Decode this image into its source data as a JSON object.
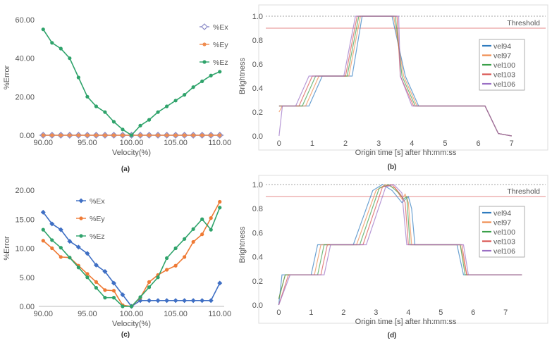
{
  "chart_data": [
    {
      "panel": "(a)",
      "type": "line",
      "xlabel": "Velocity(%)",
      "ylabel": "%Error",
      "xlim": [
        89.5,
        110.5
      ],
      "ylim": [
        0,
        60
      ],
      "xticks": [
        "90.00",
        "95.00",
        "100.00",
        "105.00",
        "110.00"
      ],
      "yticks": [
        "0.00",
        "20.00",
        "40.00",
        "60.00"
      ],
      "legend_position": "right",
      "x": [
        90,
        91,
        92,
        93,
        94,
        95,
        96,
        97,
        98,
        99,
        100,
        101,
        102,
        103,
        104,
        105,
        106,
        107,
        108,
        109,
        110
      ],
      "series": [
        {
          "name": "%Ex",
          "color": "#8b8bc8",
          "marker": "diamond-open",
          "values": [
            0,
            0,
            0,
            0,
            0,
            0,
            0,
            0,
            0,
            0,
            0,
            0,
            0,
            0,
            0,
            0,
            0,
            0,
            0,
            0,
            0
          ]
        },
        {
          "name": "%Ey",
          "color": "#ef8c4f",
          "marker": "dot",
          "values": [
            0,
            0,
            0,
            0,
            0,
            0,
            0,
            0,
            0,
            0,
            0,
            0,
            0,
            0,
            0,
            0,
            0,
            0,
            0,
            0,
            0
          ]
        },
        {
          "name": "%Ez",
          "color": "#2fa36b",
          "marker": "dot",
          "values": [
            55,
            48,
            45,
            40,
            30,
            20,
            15,
            12,
            7,
            3,
            0,
            5,
            8,
            12,
            15,
            18,
            21,
            25,
            28,
            31,
            33
          ]
        }
      ]
    },
    {
      "panel": "(b)",
      "type": "line",
      "xlabel": "Origin time [s] after hh:mm:ss",
      "ylabel": "Brightness",
      "xlim": [
        -0.4,
        7.6
      ],
      "ylim": [
        0,
        1.0
      ],
      "xticks": [
        "0",
        "1",
        "2",
        "3",
        "4",
        "5",
        "6",
        "7"
      ],
      "yticks": [
        "0.0",
        "0.2",
        "0.4",
        "0.6",
        "0.8",
        "1.0"
      ],
      "threshold": {
        "label": "Threshold",
        "value": 0.9
      },
      "legend_position": "right",
      "series": [
        {
          "name": "vel94",
          "color": "#2e7bbf",
          "x": [
            0,
            0.15,
            0.9,
            1.3,
            2.2,
            2.5,
            3.4,
            3.8,
            4.2,
            6.2,
            6.6,
            7
          ],
          "values": [
            0.25,
            0.25,
            0.25,
            0.5,
            0.5,
            1.0,
            1.0,
            0.5,
            0.25,
            0.25,
            0.02,
            0
          ]
        },
        {
          "name": "vel97",
          "color": "#ef8c4f",
          "x": [
            0,
            0.1,
            0.8,
            1.2,
            2.1,
            2.45,
            3.45,
            3.75,
            4.15,
            6.2,
            6.6,
            7
          ],
          "values": [
            0.2,
            0.25,
            0.25,
            0.5,
            0.5,
            1.0,
            1.0,
            0.5,
            0.25,
            0.25,
            0.02,
            0
          ]
        },
        {
          "name": "vel100",
          "color": "#3aa04a",
          "x": [
            0,
            0.1,
            0.7,
            1.1,
            2.05,
            2.4,
            3.5,
            3.7,
            4.1,
            6.2,
            6.6,
            7
          ],
          "values": [
            0.25,
            0.25,
            0.25,
            0.5,
            0.5,
            1.0,
            1.0,
            0.5,
            0.25,
            0.25,
            0.02,
            0
          ]
        },
        {
          "name": "vel103",
          "color": "#d9534f",
          "x": [
            0,
            0.1,
            0.6,
            1.0,
            2.0,
            2.35,
            3.55,
            3.65,
            4.05,
            6.2,
            6.6,
            7
          ],
          "values": [
            0.25,
            0.25,
            0.25,
            0.5,
            0.5,
            1.0,
            1.0,
            0.5,
            0.25,
            0.25,
            0.02,
            0
          ]
        },
        {
          "name": "vel106",
          "color": "#9a6fc4",
          "x": [
            0,
            0.1,
            0.5,
            0.9,
            1.95,
            2.3,
            3.6,
            3.65,
            4.0,
            6.2,
            6.6,
            7
          ],
          "values": [
            0,
            0.25,
            0.25,
            0.5,
            0.5,
            1.0,
            1.0,
            0.5,
            0.25,
            0.25,
            0.02,
            0
          ]
        }
      ]
    },
    {
      "panel": "(c)",
      "type": "line",
      "xlabel": "Velocity(%)",
      "ylabel": "%Error",
      "xlim": [
        89.5,
        110.5
      ],
      "ylim": [
        0,
        20
      ],
      "xticks": [
        "90.00",
        "95.00",
        "100.00",
        "105.00",
        "110.00"
      ],
      "yticks": [
        "0.00",
        "5.00",
        "10.00",
        "15.00",
        "20.00"
      ],
      "legend_position": "top-left",
      "x": [
        90,
        91,
        92,
        93,
        94,
        95,
        96,
        97,
        98,
        99,
        100,
        101,
        102,
        103,
        104,
        105,
        106,
        107,
        108,
        109,
        110
      ],
      "series": [
        {
          "name": "%Ex",
          "color": "#3f6fc4",
          "marker": "diamond",
          "values": [
            16.2,
            14.2,
            13.2,
            11.2,
            10.2,
            9.1,
            7.1,
            6.0,
            4.0,
            2.0,
            0,
            1.0,
            1.0,
            1.0,
            1.0,
            1.0,
            1.0,
            1.0,
            1.0,
            1.0,
            4.0
          ]
        },
        {
          "name": "%Ey",
          "color": "#ef7a35",
          "marker": "dot",
          "values": [
            11.3,
            10.0,
            8.5,
            8.4,
            7.0,
            5.6,
            4.2,
            2.8,
            2.7,
            0.2,
            0,
            1.5,
            4.2,
            5.4,
            6.3,
            7.0,
            8.5,
            11.1,
            12.4,
            15.2,
            18.0
          ]
        },
        {
          "name": "%Ez",
          "color": "#2fa36b",
          "marker": "dot",
          "values": [
            13.2,
            11.4,
            10.1,
            8.4,
            6.7,
            5.0,
            3.2,
            1.5,
            1.5,
            0,
            0,
            1.6,
            3.3,
            5.0,
            8.3,
            10.0,
            11.6,
            13.3,
            15.0,
            13.2,
            17.0
          ]
        }
      ]
    },
    {
      "panel": "(d)",
      "type": "line",
      "xlabel": "Origin time [s] after hh:mm:ss",
      "ylabel": "Brightness",
      "xlim": [
        -0.4,
        7.8
      ],
      "ylim": [
        0,
        1.0
      ],
      "xticks": [
        "0",
        "1",
        "2",
        "3",
        "4",
        "5",
        "6",
        "7"
      ],
      "yticks": [
        "0.0",
        "0.2",
        "0.4",
        "0.6",
        "0.8",
        "1.0"
      ],
      "threshold": {
        "label": "Threshold",
        "value": 0.9
      },
      "legend_position": "right",
      "series": [
        {
          "name": "vel94",
          "color": "#2e7bbf",
          "x": [
            0,
            0.1,
            0.5,
            1.0,
            1.2,
            2.3,
            2.9,
            3.2,
            3.5,
            3.8,
            4.0,
            4.1,
            4.2,
            5.5,
            5.7,
            6.0,
            7.5
          ],
          "values": [
            0,
            0.25,
            0.25,
            0.25,
            0.5,
            0.5,
            0.95,
            1.0,
            0.95,
            0.85,
            0.9,
            0.8,
            0.5,
            0.5,
            0.25,
            0.25,
            0.25
          ]
        },
        {
          "name": "vel97",
          "color": "#ef8c4f",
          "x": [
            0,
            0.2,
            0.5,
            1.1,
            1.3,
            2.4,
            3.0,
            3.3,
            3.6,
            3.8,
            3.9,
            4.0,
            4.1,
            5.6,
            5.8,
            6.0,
            7.5
          ],
          "values": [
            0.05,
            0.25,
            0.25,
            0.25,
            0.5,
            0.5,
            0.95,
            1.0,
            0.97,
            0.88,
            0.92,
            0.85,
            0.5,
            0.5,
            0.25,
            0.25,
            0.25
          ]
        },
        {
          "name": "vel100",
          "color": "#3aa04a",
          "x": [
            0,
            0.2,
            0.4,
            1.2,
            1.4,
            2.5,
            3.1,
            3.4,
            3.7,
            3.85,
            3.95,
            4.05,
            5.6,
            5.75,
            6.0,
            7.5
          ],
          "values": [
            0.05,
            0.25,
            0.25,
            0.25,
            0.5,
            0.5,
            0.97,
            1.0,
            0.93,
            0.88,
            0.9,
            0.5,
            0.5,
            0.25,
            0.25,
            0.25
          ]
        },
        {
          "name": "vel103",
          "color": "#d9534f",
          "x": [
            0,
            0.3,
            0.4,
            1.3,
            1.5,
            2.6,
            3.2,
            3.5,
            3.75,
            3.9,
            4.0,
            5.65,
            5.8,
            6.0,
            7.5
          ],
          "values": [
            0,
            0.25,
            0.25,
            0.25,
            0.5,
            0.5,
            0.98,
            1.0,
            0.92,
            0.85,
            0.5,
            0.5,
            0.25,
            0.25,
            0.25
          ]
        },
        {
          "name": "vel106",
          "color": "#9a6fc4",
          "x": [
            0,
            0.35,
            0.45,
            1.4,
            1.6,
            2.7,
            3.3,
            3.55,
            3.8,
            3.95,
            5.7,
            5.85,
            6.0,
            7.5
          ],
          "values": [
            0,
            0.25,
            0.25,
            0.25,
            0.5,
            0.5,
            0.98,
            1.0,
            0.93,
            0.5,
            0.5,
            0.25,
            0.25,
            0.25
          ]
        }
      ]
    }
  ]
}
